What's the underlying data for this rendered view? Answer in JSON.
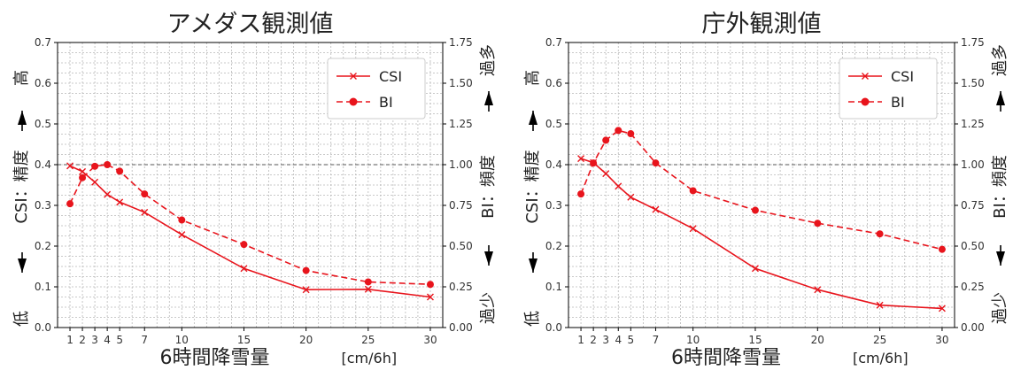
{
  "chart_data": [
    {
      "type": "line",
      "title": "アメダス観測値",
      "x": [
        1,
        2,
        3,
        4,
        5,
        7,
        10,
        15,
        20,
        25,
        30
      ],
      "xlabel": "6時間降雪量",
      "xunit": "[cm/6h]",
      "ylabel_left": {
        "top": "高",
        "mid": "CSI：精度",
        "bottom": "低"
      },
      "ylabel_right": {
        "top": "過多",
        "mid": "BI：頻度",
        "bottom": "過少"
      },
      "ylim_left": [
        0,
        0.7
      ],
      "ylim_right": [
        0,
        1.75
      ],
      "left_ticks": [
        "0.0",
        "0.1",
        "0.2",
        "0.3",
        "0.4",
        "0.5",
        "0.6",
        "0.7"
      ],
      "right_ticks": [
        "0.00",
        "0.25",
        "0.50",
        "0.75",
        "1.00",
        "1.25",
        "1.50",
        "1.75"
      ],
      "reference_line": 1.0,
      "grid": true,
      "legend_position": "top-right",
      "series": [
        {
          "name": "CSI",
          "axis": "left",
          "style": "solid-x",
          "color": "#e8141c",
          "values": [
            0.397,
            0.383,
            0.357,
            0.327,
            0.308,
            0.283,
            0.228,
            0.145,
            0.093,
            0.094,
            0.075
          ]
        },
        {
          "name": "BI",
          "axis": "right",
          "style": "dashed-dot",
          "color": "#e8141c",
          "values": [
            0.76,
            0.92,
            0.99,
            1.0,
            0.96,
            0.82,
            0.66,
            0.51,
            0.35,
            0.28,
            0.265
          ]
        }
      ]
    },
    {
      "type": "line",
      "title": "庁外観測値",
      "x": [
        1,
        2,
        3,
        4,
        5,
        7,
        10,
        15,
        20,
        25,
        30
      ],
      "xlabel": "6時間降雪量",
      "xunit": "[cm/6h]",
      "ylabel_left": {
        "top": "高",
        "mid": "CSI：精度",
        "bottom": "低"
      },
      "ylabel_right": {
        "top": "過多",
        "mid": "BI：頻度",
        "bottom": "過少"
      },
      "ylim_left": [
        0,
        0.7
      ],
      "ylim_right": [
        0,
        1.75
      ],
      "left_ticks": [
        "0.0",
        "0.1",
        "0.2",
        "0.3",
        "0.4",
        "0.5",
        "0.6",
        "0.7"
      ],
      "right_ticks": [
        "0.00",
        "0.25",
        "0.50",
        "0.75",
        "1.00",
        "1.25",
        "1.50",
        "1.75"
      ],
      "reference_line": 1.0,
      "grid": true,
      "legend_position": "top-right",
      "series": [
        {
          "name": "CSI",
          "axis": "left",
          "style": "solid-x",
          "color": "#e8141c",
          "values": [
            0.415,
            0.405,
            0.378,
            0.347,
            0.32,
            0.29,
            0.243,
            0.145,
            0.093,
            0.055,
            0.047
          ]
        },
        {
          "name": "BI",
          "axis": "right",
          "style": "dashed-dot",
          "color": "#e8141c",
          "values": [
            0.82,
            1.01,
            1.15,
            1.21,
            1.19,
            1.01,
            0.84,
            0.72,
            0.64,
            0.575,
            0.48
          ]
        }
      ]
    }
  ]
}
